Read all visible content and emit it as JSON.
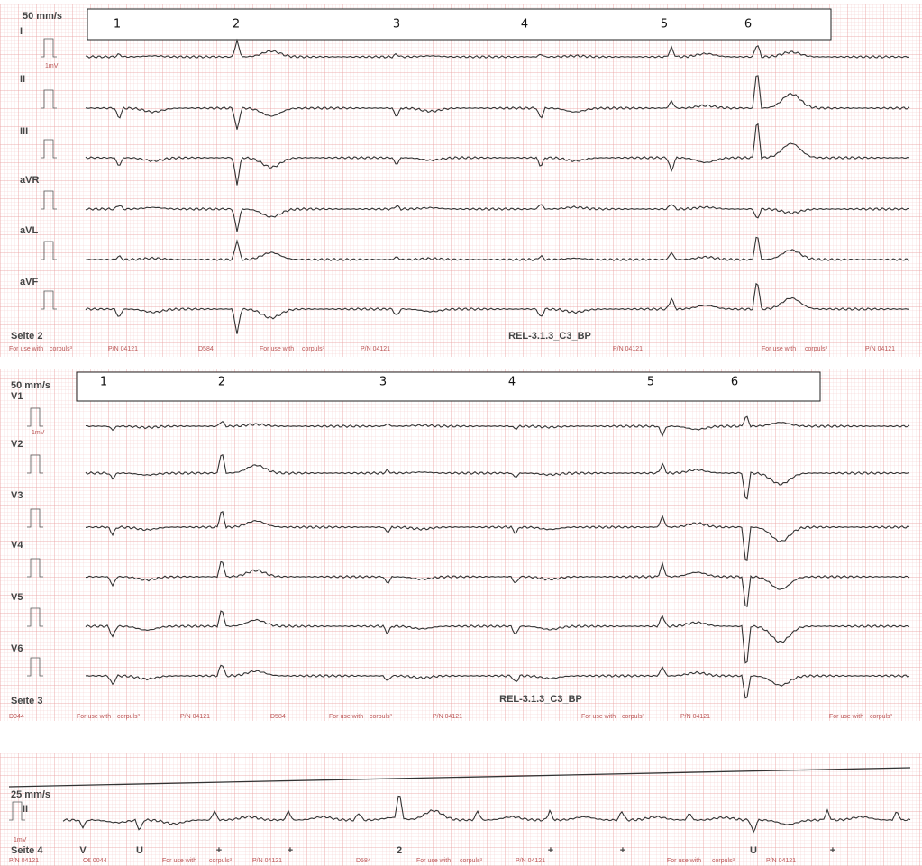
{
  "panels": [
    {
      "speed": "50 mm/s",
      "calibration": "1mV",
      "leads": [
        "I",
        "II",
        "III",
        "aVR",
        "aVL",
        "aVF"
      ],
      "beat_numbers": [
        "1",
        "2",
        "3",
        "4",
        "5",
        "6"
      ],
      "page": "Seite 2",
      "recording": "REL-3.1.3_C3_BP",
      "footer": [
        "For use with",
        "corpuls³",
        "P/N 04121",
        "D584",
        "For use with",
        "corpuls³",
        "P/N 04121",
        "P/N 04121",
        "For use with",
        "corpuls³",
        "P/N 04121"
      ]
    },
    {
      "speed": "50 mm/s",
      "calibration": "1mV",
      "leads": [
        "V1",
        "V2",
        "V3",
        "V4",
        "V5",
        "V6"
      ],
      "beat_numbers": [
        "1",
        "2",
        "3",
        "4",
        "5",
        "6"
      ],
      "page": "Seite 3",
      "recording": "REL-3.1.3_C3_BP",
      "footer": [
        "D044",
        "For use with",
        "corpuls³",
        "P/N 04121",
        "D584",
        "For use with",
        "corpuls³",
        "P/N 04121",
        "For use with",
        "corpuls³",
        "P/N 04121",
        "For use with",
        "corpuls³"
      ]
    },
    {
      "speed": "25 mm/s",
      "calibration": "1mV",
      "leads": [
        "II"
      ],
      "page": "Seite 4",
      "beat_markers": [
        "V",
        "U",
        "+",
        "+",
        "2",
        "+",
        "+",
        "U",
        "+"
      ],
      "footer": [
        "P/N 04121",
        "C€ 0044",
        "For use with",
        "corpuls³",
        "P/N 04121",
        "D584",
        "For use with",
        "corpuls³",
        "P/N 04121",
        "For use with",
        "corpuls³",
        "P/N 04121"
      ]
    }
  ]
}
